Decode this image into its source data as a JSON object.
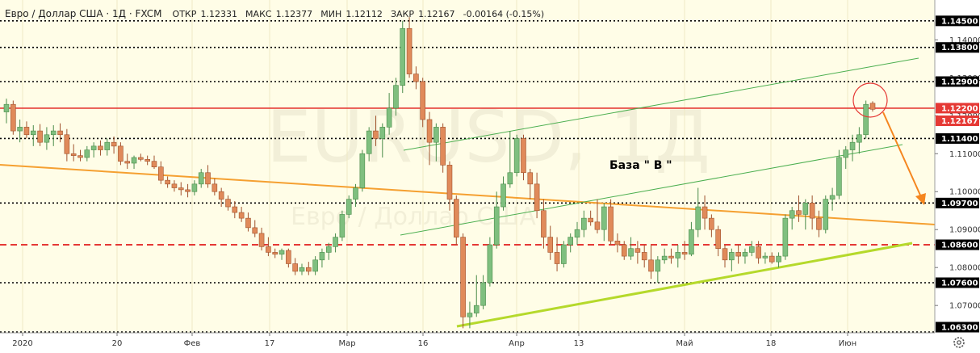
{
  "header": {
    "title": "Евро / Доллар США · 1Д · FXCM",
    "open_label": "ОТКР",
    "open": "1.12331",
    "high_label": "МАКС",
    "high": "1.12377",
    "low_label": "МИН",
    "low": "1.12112",
    "close_label": "ЗАКР",
    "close": "1.12167",
    "change": "-0.00164 (-0.15%)"
  },
  "watermark": {
    "symbol": "EURUSD, 1Д",
    "name": "Евро / Доллар США"
  },
  "colors": {
    "up": "#7fbf7f",
    "down": "#e08a5a",
    "resistance": "#e53935",
    "dotted": "#000000",
    "trend_orange": "#f5a031",
    "channel_green": "#4caf50",
    "support_lime": "#b5d92b",
    "label_bg": "#000000",
    "price_label_bg": "#e53935"
  },
  "chart_data": {
    "type": "candlestick",
    "symbol": "EURUSD",
    "timeframe": "1Д",
    "ylim": [
      1.0628,
      1.1505
    ],
    "y_ticks": [
      "1.14000",
      "1.13000",
      "1.12000",
      "1.11000",
      "1.10000",
      "1.09000",
      "1.08000",
      "1.07000"
    ],
    "x_labels": [
      "2020",
      "20",
      "Фев",
      "17",
      "Мар",
      "16",
      "Апр",
      "13",
      "Май",
      "18",
      "Июн"
    ],
    "levels": [
      {
        "label": "1.14500",
        "value": 1.145,
        "style": "dotted"
      },
      {
        "label": "1.13800",
        "value": 1.138,
        "style": "dotted"
      },
      {
        "label": "1.12900",
        "value": 1.129,
        "style": "dotted"
      },
      {
        "label": "1.12200",
        "value": 1.122,
        "style": "solid-red"
      },
      {
        "label": "1.11400",
        "value": 1.114,
        "style": "dotted"
      },
      {
        "label": "1.09700",
        "value": 1.097,
        "style": "dotted"
      },
      {
        "label": "1.08600",
        "value": 1.086,
        "style": "dashed-red"
      },
      {
        "label": "1.07600",
        "value": 1.076,
        "style": "dotted"
      },
      {
        "label": "1.06300",
        "value": 1.063,
        "style": "dotted"
      }
    ],
    "current_price": "1.12167",
    "annotation": "База  \" В \"",
    "candles": [
      [
        1.121,
        1.1245,
        1.118,
        1.123
      ],
      [
        1.123,
        1.124,
        1.115,
        1.116
      ],
      [
        1.116,
        1.119,
        1.113,
        1.117
      ],
      [
        1.117,
        1.1185,
        1.114,
        1.115
      ],
      [
        1.115,
        1.1175,
        1.112,
        1.116
      ],
      [
        1.116,
        1.1178,
        1.112,
        1.113
      ],
      [
        1.113,
        1.117,
        1.111,
        1.115
      ],
      [
        1.115,
        1.1175,
        1.112,
        1.116
      ],
      [
        1.116,
        1.118,
        1.113,
        1.115
      ],
      [
        1.115,
        1.1165,
        1.108,
        1.11
      ],
      [
        1.11,
        1.1125,
        1.108,
        1.1095
      ],
      [
        1.1095,
        1.111,
        1.108,
        1.109
      ],
      [
        1.109,
        1.112,
        1.108,
        1.111
      ],
      [
        1.111,
        1.113,
        1.109,
        1.112
      ],
      [
        1.112,
        1.1135,
        1.1095,
        1.111
      ],
      [
        1.111,
        1.114,
        1.1095,
        1.113
      ],
      [
        1.113,
        1.1145,
        1.11,
        1.112
      ],
      [
        1.112,
        1.113,
        1.107,
        1.108
      ],
      [
        1.108,
        1.11,
        1.106,
        1.1075
      ],
      [
        1.1075,
        1.1095,
        1.106,
        1.109
      ],
      [
        1.109,
        1.11,
        1.108,
        1.1085
      ],
      [
        1.1085,
        1.1095,
        1.107,
        1.108
      ],
      [
        1.108,
        1.1095,
        1.106,
        1.1065
      ],
      [
        1.1065,
        1.108,
        1.102,
        1.103
      ],
      [
        1.103,
        1.104,
        1.101,
        1.102
      ],
      [
        1.102,
        1.103,
        1.1,
        1.101
      ],
      [
        1.101,
        1.1025,
        1.099,
        1.1005
      ],
      [
        1.1005,
        1.102,
        1.0985,
        1.1
      ],
      [
        1.1,
        1.103,
        1.099,
        1.102
      ],
      [
        1.102,
        1.106,
        1.101,
        1.105
      ],
      [
        1.105,
        1.107,
        1.101,
        1.102
      ],
      [
        1.102,
        1.1035,
        1.099,
        1.1
      ],
      [
        1.1,
        1.101,
        1.096,
        1.098
      ],
      [
        1.098,
        1.099,
        1.095,
        1.096
      ],
      [
        1.096,
        1.0975,
        1.093,
        1.0945
      ],
      [
        1.0945,
        1.096,
        1.092,
        1.093
      ],
      [
        1.093,
        1.0945,
        1.0895,
        1.0905
      ],
      [
        1.0905,
        1.0925,
        1.088,
        1.089
      ],
      [
        1.089,
        1.0905,
        1.0845,
        1.0855
      ],
      [
        1.0855,
        1.088,
        1.083,
        1.084
      ],
      [
        1.084,
        1.085,
        1.0825,
        1.0835
      ],
      [
        1.0835,
        1.085,
        1.082,
        1.0845
      ],
      [
        1.0845,
        1.085,
        1.08,
        1.081
      ],
      [
        1.081,
        1.0825,
        1.078,
        1.079
      ],
      [
        1.079,
        1.081,
        1.078,
        1.08
      ],
      [
        1.08,
        1.0815,
        1.078,
        1.079
      ],
      [
        1.079,
        1.083,
        1.078,
        1.082
      ],
      [
        1.082,
        1.085,
        1.08,
        1.084
      ],
      [
        1.084,
        1.0865,
        1.082,
        1.0855
      ],
      [
        1.0855,
        1.089,
        1.084,
        1.088
      ],
      [
        1.088,
        1.095,
        1.087,
        1.094
      ],
      [
        1.094,
        1.099,
        1.093,
        1.098
      ],
      [
        1.098,
        1.102,
        1.096,
        1.101
      ],
      [
        1.101,
        1.111,
        1.1,
        1.11
      ],
      [
        1.11,
        1.117,
        1.108,
        1.116
      ],
      [
        1.116,
        1.12,
        1.112,
        1.114
      ],
      [
        1.114,
        1.118,
        1.109,
        1.117
      ],
      [
        1.117,
        1.126,
        1.115,
        1.122
      ],
      [
        1.122,
        1.13,
        1.12,
        1.128
      ],
      [
        1.128,
        1.145,
        1.126,
        1.143
      ],
      [
        1.143,
        1.146,
        1.13,
        1.131
      ],
      [
        1.131,
        1.133,
        1.127,
        1.129
      ],
      [
        1.129,
        1.13,
        1.117,
        1.119
      ],
      [
        1.119,
        1.121,
        1.107,
        1.113
      ],
      [
        1.113,
        1.118,
        1.108,
        1.117
      ],
      [
        1.117,
        1.118,
        1.105,
        1.107
      ],
      [
        1.107,
        1.108,
        1.095,
        1.098
      ],
      [
        1.098,
        1.099,
        1.086,
        1.088
      ],
      [
        1.088,
        1.089,
        1.064,
        1.067
      ],
      [
        1.067,
        1.071,
        1.064,
        1.068
      ],
      [
        1.068,
        1.078,
        1.067,
        1.07
      ],
      [
        1.07,
        1.078,
        1.069,
        1.076
      ],
      [
        1.076,
        1.088,
        1.075,
        1.086
      ],
      [
        1.086,
        1.1,
        1.085,
        1.096
      ],
      [
        1.096,
        1.104,
        1.095,
        1.102
      ],
      [
        1.102,
        1.116,
        1.101,
        1.105
      ],
      [
        1.105,
        1.115,
        1.104,
        1.114
      ],
      [
        1.114,
        1.115,
        1.103,
        1.105
      ],
      [
        1.105,
        1.106,
        1.098,
        1.102
      ],
      [
        1.102,
        1.105,
        1.093,
        1.095
      ],
      [
        1.095,
        1.098,
        1.085,
        1.088
      ],
      [
        1.088,
        1.091,
        1.082,
        1.084
      ],
      [
        1.084,
        1.088,
        1.079,
        1.081
      ],
      [
        1.081,
        1.087,
        1.08,
        1.086
      ],
      [
        1.086,
        1.089,
        1.084,
        1.088
      ],
      [
        1.088,
        1.092,
        1.086,
        1.09
      ],
      [
        1.09,
        1.095,
        1.088,
        1.093
      ],
      [
        1.093,
        1.095,
        1.091,
        1.092
      ],
      [
        1.092,
        1.098,
        1.089,
        1.09
      ],
      [
        1.09,
        1.097,
        1.087,
        1.096
      ],
      [
        1.096,
        1.098,
        1.086,
        1.087
      ],
      [
        1.087,
        1.089,
        1.084,
        1.086
      ],
      [
        1.086,
        1.087,
        1.082,
        1.083
      ],
      [
        1.083,
        1.088,
        1.082,
        1.085
      ],
      [
        1.085,
        1.087,
        1.081,
        1.084
      ],
      [
        1.084,
        1.086,
        1.08,
        1.082
      ],
      [
        1.082,
        1.086,
        1.077,
        1.079
      ],
      [
        1.079,
        1.083,
        1.076,
        1.082
      ],
      [
        1.082,
        1.085,
        1.081,
        1.083
      ],
      [
        1.083,
        1.085,
        1.081,
        1.0825
      ],
      [
        1.0825,
        1.086,
        1.08,
        1.084
      ],
      [
        1.084,
        1.087,
        1.082,
        1.0835
      ],
      [
        1.0835,
        1.092,
        1.083,
        1.09
      ],
      [
        1.09,
        1.101,
        1.088,
        1.096
      ],
      [
        1.096,
        1.099,
        1.09,
        1.093
      ],
      [
        1.093,
        1.094,
        1.088,
        1.09
      ],
      [
        1.09,
        1.091,
        1.083,
        1.085
      ],
      [
        1.085,
        1.086,
        1.08,
        1.082
      ],
      [
        1.082,
        1.085,
        1.079,
        1.084
      ],
      [
        1.084,
        1.086,
        1.081,
        1.083
      ],
      [
        1.083,
        1.085,
        1.081,
        1.084
      ],
      [
        1.084,
        1.087,
        1.083,
        1.0855
      ],
      [
        1.0855,
        1.087,
        1.081,
        1.0825
      ],
      [
        1.0825,
        1.084,
        1.081,
        1.083
      ],
      [
        1.083,
        1.084,
        1.081,
        1.0815
      ],
      [
        1.0815,
        1.084,
        1.08,
        1.083
      ],
      [
        1.083,
        1.094,
        1.082,
        1.093
      ],
      [
        1.093,
        1.096,
        1.09,
        1.095
      ],
      [
        1.095,
        1.099,
        1.092,
        1.094
      ],
      [
        1.094,
        1.098,
        1.09,
        1.097
      ],
      [
        1.097,
        1.099,
        1.09,
        1.093
      ],
      [
        1.093,
        1.095,
        1.088,
        1.09
      ],
      [
        1.09,
        1.099,
        1.089,
        1.098
      ],
      [
        1.098,
        1.101,
        1.095,
        1.099
      ],
      [
        1.099,
        1.111,
        1.098,
        1.109
      ],
      [
        1.109,
        1.112,
        1.106,
        1.111
      ],
      [
        1.111,
        1.115,
        1.108,
        1.113
      ],
      [
        1.113,
        1.117,
        1.11,
        1.115
      ],
      [
        1.115,
        1.124,
        1.114,
        1.123
      ],
      [
        1.1233,
        1.1238,
        1.1211,
        1.1217
      ]
    ]
  }
}
